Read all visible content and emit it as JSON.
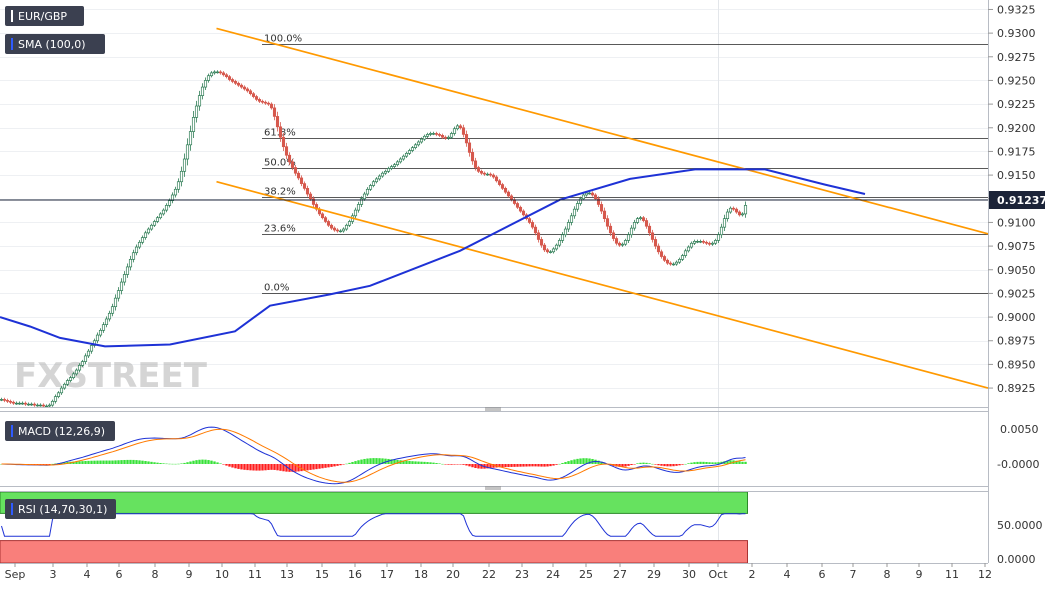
{
  "symbol": "EUR/GBP",
  "indicators": {
    "sma": "SMA (100,0)",
    "macd": "MACD (12,26,9)",
    "rsi": "RSI (14,70,30,1)"
  },
  "watermark": "FXSTREET",
  "current_price": "0.91237",
  "colors": {
    "up": "#2e7d55",
    "up_fill": "#ffffff",
    "down": "#d6584d",
    "sma": "#1e32d6",
    "trend": "#ff9900",
    "badge": "#3b4050",
    "macd_line": "#1e32d6",
    "signal_line": "#ff7a00",
    "hist_pos": "#39e23a",
    "hist_neg": "#ff1f1f",
    "rsi_line": "#1e32d6",
    "rsi_over": "#66e25f",
    "rsi_under": "#f97f7b"
  },
  "chart_data": {
    "type": "candlestick",
    "price_axis": {
      "ylim": [
        0.8905,
        0.9335
      ],
      "ticks": [
        "0.9325",
        "0.9300",
        "0.9275",
        "0.9250",
        "0.9225",
        "0.9200",
        "0.9175",
        "0.9150",
        "0.9125",
        "0.9100",
        "0.9075",
        "0.9050",
        "0.9025",
        "0.9000",
        "0.8975",
        "0.8950",
        "0.8925"
      ]
    },
    "macd_axis": {
      "ticks": [
        "0.0050",
        "-0.0000"
      ]
    },
    "rsi_axis": {
      "ticks": [
        "50.0000",
        "0.0000"
      ],
      "overbought": 70,
      "oversold": 30
    },
    "x_ticks": [
      "Sep",
      "3",
      "4",
      "6",
      "8",
      "9",
      "10",
      "11",
      "13",
      "15",
      "16",
      "17",
      "18",
      "20",
      "22",
      "23",
      "24",
      "25",
      "27",
      "29",
      "30",
      "Oct",
      "2",
      "4",
      "6",
      "7",
      "8",
      "9",
      "11",
      "12"
    ],
    "fibonacci": [
      {
        "label": "100.0%",
        "price": 0.9289
      },
      {
        "label": "61.8%",
        "price": 0.9189
      },
      {
        "label": "50.0%",
        "price": 0.9158
      },
      {
        "label": "38.2%",
        "price": 0.9127
      },
      {
        "label": "23.6%",
        "price": 0.9088
      },
      {
        "label": "0.0%",
        "price": 0.9025
      }
    ],
    "trendlines": [
      {
        "start_bar": 60,
        "start_price": 0.9305,
        "end_bar": 290,
        "end_price": 0.9088
      },
      {
        "start_bar": 60,
        "start_price": 0.9143,
        "end_bar": 290,
        "end_price": 0.8925
      }
    ],
    "closes": [
      0.8913,
      0.8912,
      0.8911,
      0.891,
      0.8909,
      0.8909,
      0.8909,
      0.8909,
      0.8908,
      0.8908,
      0.8908,
      0.8907,
      0.8907,
      0.8907,
      0.8906,
      0.8906,
      0.8907,
      0.8911,
      0.8916,
      0.892,
      0.8925,
      0.8929,
      0.8933,
      0.8936,
      0.894,
      0.8944,
      0.8949,
      0.8953,
      0.8959,
      0.8964,
      0.897,
      0.8975,
      0.8981,
      0.8986,
      0.8992,
      0.8998,
      0.9004,
      0.9011,
      0.902,
      0.9028,
      0.9037,
      0.9045,
      0.9053,
      0.9061,
      0.9068,
      0.9074,
      0.9079,
      0.9084,
      0.9089,
      0.9093,
      0.9097,
      0.9101,
      0.9105,
      0.9109,
      0.9113,
      0.9118,
      0.9123,
      0.9129,
      0.9135,
      0.9143,
      0.9154,
      0.9167,
      0.9182,
      0.9196,
      0.9211,
      0.9223,
      0.9234,
      0.9243,
      0.925,
      0.9255,
      0.9258,
      0.9259,
      0.9259,
      0.9258,
      0.9256,
      0.9254,
      0.9251,
      0.9249,
      0.9247,
      0.9245,
      0.9243,
      0.9241,
      0.9239,
      0.9236,
      0.9233,
      0.923,
      0.9228,
      0.9227,
      0.9226,
      0.9225,
      0.9221,
      0.9212,
      0.9201,
      0.919,
      0.918,
      0.9171,
      0.9164,
      0.9158,
      0.9152,
      0.9147,
      0.9141,
      0.9136,
      0.913,
      0.9125,
      0.9119,
      0.9114,
      0.9109,
      0.9105,
      0.9101,
      0.9097,
      0.9094,
      0.9092,
      0.9091,
      0.9091,
      0.9093,
      0.9097,
      0.9101,
      0.9107,
      0.9113,
      0.9119,
      0.9125,
      0.913,
      0.9135,
      0.9139,
      0.9143,
      0.9146,
      0.9149,
      0.9152,
      0.9154,
      0.9157,
      0.9159,
      0.9161,
      0.9164,
      0.9167,
      0.917,
      0.9173,
      0.9176,
      0.9179,
      0.9182,
      0.9185,
      0.9188,
      0.9191,
      0.9193,
      0.9194,
      0.9194,
      0.9193,
      0.9192,
      0.919,
      0.9189,
      0.919,
      0.9194,
      0.9199,
      0.9202,
      0.92,
      0.9193,
      0.9184,
      0.9174,
      0.9165,
      0.9158,
      0.9154,
      0.9152,
      0.9151,
      0.9151,
      0.915,
      0.9148,
      0.9144,
      0.914,
      0.9136,
      0.9132,
      0.9128,
      0.9124,
      0.912,
      0.9116,
      0.9112,
      0.9108,
      0.9104,
      0.91,
      0.9095,
      0.9089,
      0.9082,
      0.9076,
      0.9071,
      0.9069,
      0.9069,
      0.9072,
      0.9076,
      0.9081,
      0.9087,
      0.9093,
      0.91,
      0.9107,
      0.9114,
      0.912,
      0.9125,
      0.9129,
      0.9131,
      0.9131,
      0.9129,
      0.9125,
      0.9119,
      0.9112,
      0.9104,
      0.9096,
      0.9089,
      0.9083,
      0.9078,
      0.9076,
      0.9077,
      0.9081,
      0.9087,
      0.9094,
      0.91,
      0.9104,
      0.9105,
      0.9102,
      0.9096,
      0.9089,
      0.9082,
      0.9075,
      0.9069,
      0.9064,
      0.906,
      0.9057,
      0.9056,
      0.9056,
      0.9058,
      0.9061,
      0.9065,
      0.907,
      0.9074,
      0.9078,
      0.908,
      0.908,
      0.908,
      0.9079,
      0.9078,
      0.9077,
      0.9078,
      0.9081,
      0.9087,
      0.9095,
      0.9104,
      0.9111,
      0.9115,
      0.9114,
      0.9111,
      0.9108,
      0.9109,
      0.9118
    ],
    "sma": [
      [
        0,
        0.9
      ],
      [
        30,
        0.899
      ],
      [
        60,
        0.8978
      ],
      [
        105,
        0.8969
      ],
      [
        170,
        0.8971
      ],
      [
        235,
        0.8985
      ],
      [
        270,
        0.9012
      ],
      [
        330,
        0.9024
      ],
      [
        370,
        0.9033
      ],
      [
        460,
        0.907
      ],
      [
        560,
        0.9124
      ],
      [
        630,
        0.9146
      ],
      [
        695,
        0.9156
      ],
      [
        765,
        0.9156
      ],
      [
        825,
        0.914
      ],
      [
        865,
        0.913
      ]
    ]
  }
}
